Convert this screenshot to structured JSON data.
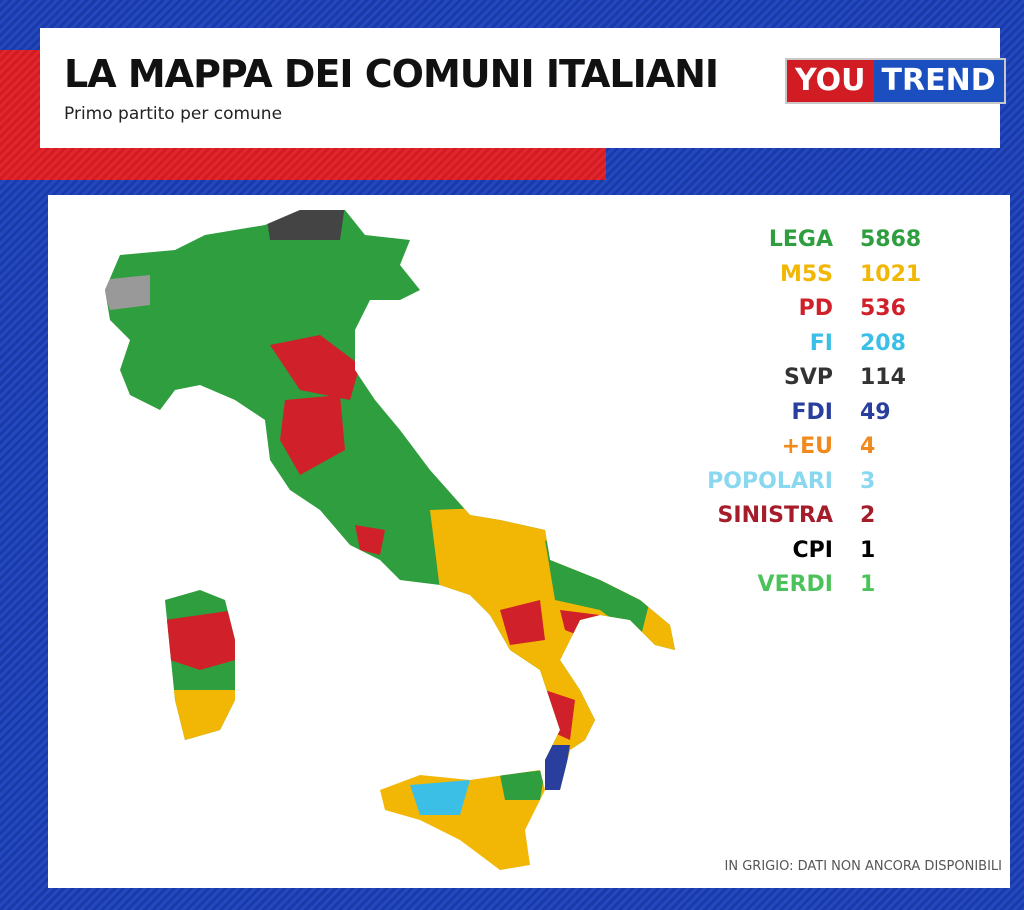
{
  "header": {
    "title": "LA MAPPA DEI COMUNI ITALIANI",
    "subtitle": "Primo partito per comune",
    "logo": [
      "YOU",
      "TREND"
    ]
  },
  "legend": [
    {
      "party": "LEGA",
      "count": "5868",
      "color": "#2e9e3e"
    },
    {
      "party": "M5S",
      "count": "1021",
      "color": "#f2b705"
    },
    {
      "party": "PD",
      "count": "536",
      "color": "#d0202a"
    },
    {
      "party": "FI",
      "count": "208",
      "color": "#3cbfe6"
    },
    {
      "party": "SVP",
      "count": "114",
      "color": "#333333"
    },
    {
      "party": "FDI",
      "count": "49",
      "color": "#2a3f9d"
    },
    {
      "party": "+EU",
      "count": "4",
      "color": "#f08a1c"
    },
    {
      "party": "POPOLARI",
      "count": "3",
      "color": "#8ad8f0"
    },
    {
      "party": "SINISTRA",
      "count": "2",
      "color": "#a51c2a"
    },
    {
      "party": "CPI",
      "count": "1",
      "color": "#000000"
    },
    {
      "party": "VERDI",
      "count": "1",
      "color": "#4cc35a"
    }
  ],
  "note": "IN GRIGIO: DATI NON ANCORA DISPONIBILI"
}
